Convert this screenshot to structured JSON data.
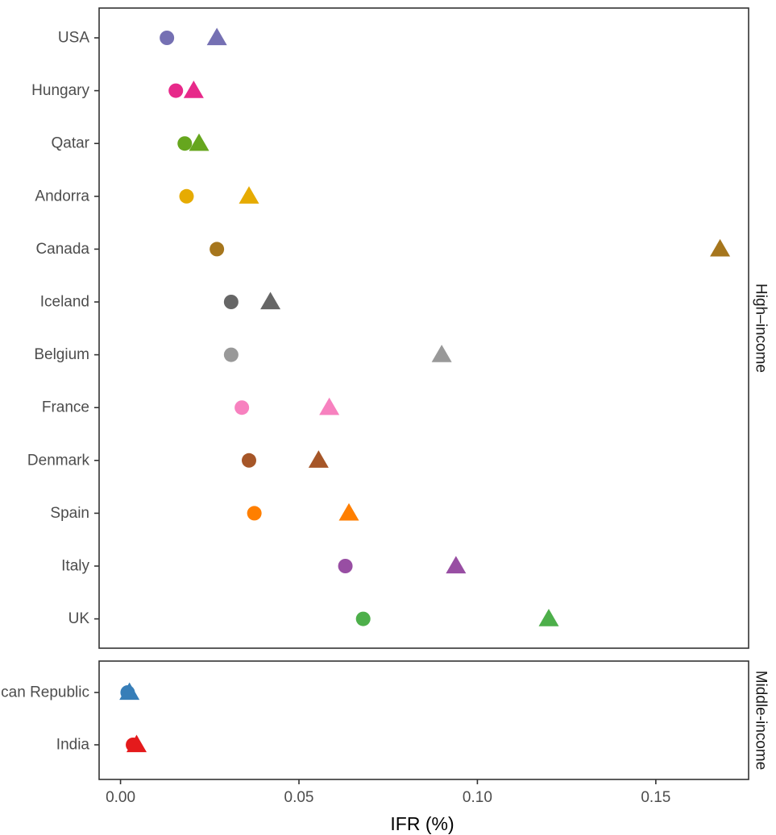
{
  "chart_data": {
    "type": "scatter",
    "xlabel": "IFR (%)",
    "xlim": [
      -0.006,
      0.176
    ],
    "x_ticks": [
      "0.00",
      "0.05",
      "0.10",
      "0.15"
    ],
    "x_tick_values": [
      0.0,
      0.05,
      0.1,
      0.15
    ],
    "grid": false,
    "legend": "none",
    "panels": [
      {
        "name": "High–income",
        "categories": [
          "USA",
          "Hungary",
          "Qatar",
          "Andorra",
          "Canada",
          "Iceland",
          "Belgium",
          "France",
          "Denmark",
          "Spain",
          "Italy",
          "UK"
        ],
        "points": [
          {
            "country": "USA",
            "circle": 0.013,
            "triangle": 0.027,
            "color": "#7570b3"
          },
          {
            "country": "Hungary",
            "circle": 0.0155,
            "triangle": 0.0205,
            "color": "#e7298a"
          },
          {
            "country": "Qatar",
            "circle": 0.018,
            "triangle": 0.022,
            "color": "#66a61e"
          },
          {
            "country": "Andorra",
            "circle": 0.0185,
            "triangle": 0.036,
            "color": "#e6ab02"
          },
          {
            "country": "Canada",
            "circle": 0.027,
            "triangle": 0.168,
            "color": "#a6761d"
          },
          {
            "country": "Iceland",
            "circle": 0.031,
            "triangle": 0.042,
            "color": "#666666"
          },
          {
            "country": "Belgium",
            "circle": 0.031,
            "triangle": 0.09,
            "color": "#999999"
          },
          {
            "country": "France",
            "circle": 0.034,
            "triangle": 0.0585,
            "color": "#f781bf"
          },
          {
            "country": "Denmark",
            "circle": 0.036,
            "triangle": 0.0555,
            "color": "#a65628"
          },
          {
            "country": "Spain",
            "circle": 0.0375,
            "triangle": 0.064,
            "color": "#ff7f00"
          },
          {
            "country": "Italy",
            "circle": 0.063,
            "triangle": 0.094,
            "color": "#984ea3"
          },
          {
            "country": "UK",
            "circle": 0.068,
            "triangle": 0.12,
            "color": "#4daf4a"
          }
        ]
      },
      {
        "name": "Middle-income",
        "categories": [
          "Dominican Republic",
          "India"
        ],
        "points": [
          {
            "country": "Dominican Republic",
            "circle": 0.002,
            "triangle": 0.0025,
            "color": "#377eb8"
          },
          {
            "country": "India",
            "circle": 0.0035,
            "triangle": 0.0045,
            "color": "#e41a1c"
          }
        ]
      }
    ]
  }
}
